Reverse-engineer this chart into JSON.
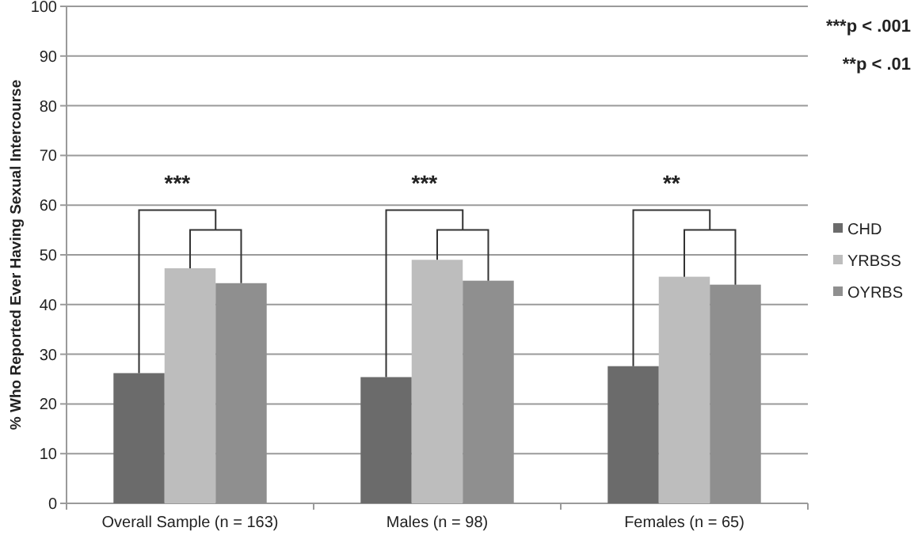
{
  "chart_data": {
    "type": "bar",
    "ylabel": "% Who Reported Ever Having Sexual Intercourse",
    "categories": [
      "Overall Sample (n = 163)",
      "Males (n = 98)",
      "Females (n = 65)"
    ],
    "series": [
      {
        "name": "CHD",
        "color": "#6b6b6b",
        "values": [
          26.2,
          25.4,
          27.6
        ]
      },
      {
        "name": "YRBSS",
        "color": "#bdbdbd",
        "values": [
          47.3,
          49.0,
          45.6
        ]
      },
      {
        "name": "OYRBS",
        "color": "#8f8f8f",
        "values": [
          44.3,
          44.8,
          44.0
        ]
      }
    ],
    "ylim": [
      0,
      100
    ],
    "yticks": [
      0,
      10,
      20,
      30,
      40,
      50,
      60,
      70,
      80,
      90,
      100
    ],
    "grid": "y",
    "legend": "right",
    "annotations": [
      "***",
      "***",
      "**",
      "***p < .001",
      "**p < .01"
    ]
  }
}
